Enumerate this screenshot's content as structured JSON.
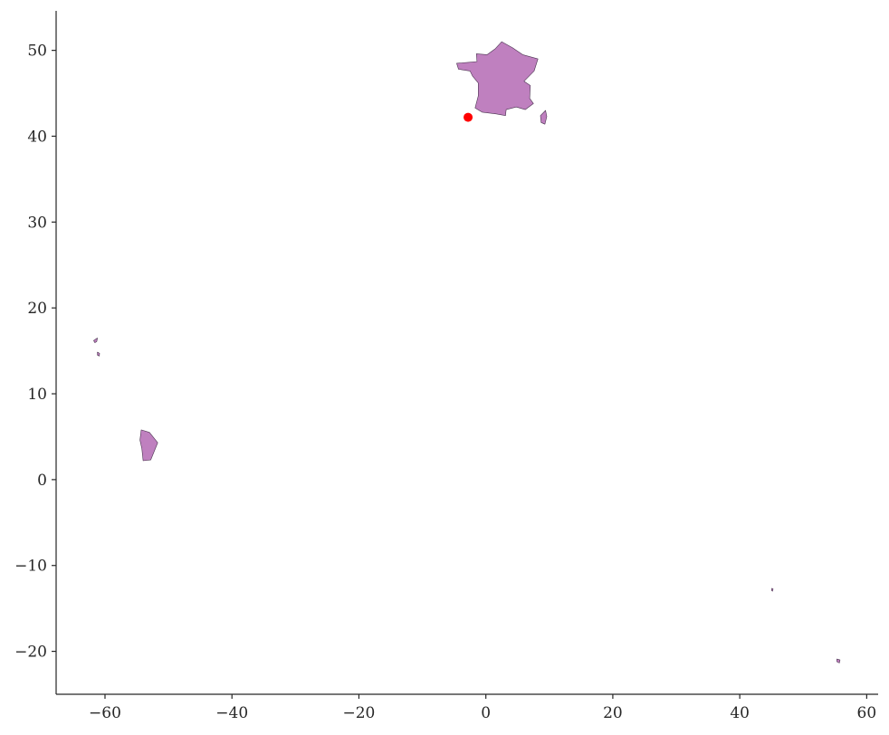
{
  "chart_data": {
    "type": "map",
    "title": "",
    "xlabel": "",
    "ylabel": "",
    "xlim": [
      -67.7,
      61.8
    ],
    "ylim": [
      -25.0,
      54.6
    ],
    "grid": false,
    "x_ticks": [
      -60,
      -40,
      -20,
      0,
      20,
      40,
      60
    ],
    "y_ticks": [
      -20,
      -10,
      0,
      10,
      20,
      30,
      40,
      50
    ],
    "x_tick_labels": [
      "−60",
      "−40",
      "−20",
      "0",
      "20",
      "40",
      "60"
    ],
    "y_tick_labels": [
      "−20",
      "−10",
      "0",
      "10",
      "20",
      "30",
      "40",
      "50"
    ],
    "fill_color": "#bf80bf",
    "edge_color": "#4a3350",
    "marker_color": "#ff0000",
    "regions": [
      {
        "name": "Metropolitan France",
        "lonlat": [
          [
            -4.6,
            48.5
          ],
          [
            -2.8,
            48.6
          ],
          [
            -1.4,
            48.7
          ],
          [
            -1.5,
            49.6
          ],
          [
            0.2,
            49.5
          ],
          [
            1.5,
            50.2
          ],
          [
            2.5,
            51.0
          ],
          [
            4.2,
            50.3
          ],
          [
            5.8,
            49.5
          ],
          [
            8.2,
            49.0
          ],
          [
            7.6,
            47.6
          ],
          [
            6.0,
            46.4
          ],
          [
            7.0,
            45.9
          ],
          [
            6.9,
            44.4
          ],
          [
            7.5,
            43.8
          ],
          [
            6.2,
            43.1
          ],
          [
            4.8,
            43.4
          ],
          [
            3.2,
            43.1
          ],
          [
            3.1,
            42.4
          ],
          [
            1.6,
            42.6
          ],
          [
            -0.6,
            42.8
          ],
          [
            -1.7,
            43.3
          ],
          [
            -1.2,
            44.7
          ],
          [
            -1.2,
            46.2
          ],
          [
            -2.1,
            47.0
          ],
          [
            -2.5,
            47.6
          ],
          [
            -4.3,
            47.8
          ]
        ]
      },
      {
        "name": "Corsica",
        "lonlat": [
          [
            9.4,
            43.0
          ],
          [
            9.6,
            42.3
          ],
          [
            9.3,
            41.4
          ],
          [
            8.7,
            41.6
          ],
          [
            8.6,
            42.4
          ]
        ]
      },
      {
        "name": "French Guiana",
        "lonlat": [
          [
            -54.3,
            5.8
          ],
          [
            -53.0,
            5.5
          ],
          [
            -51.7,
            4.3
          ],
          [
            -52.3,
            3.2
          ],
          [
            -52.8,
            2.3
          ],
          [
            -54.0,
            2.2
          ],
          [
            -54.2,
            3.6
          ],
          [
            -54.5,
            4.6
          ]
        ]
      },
      {
        "name": "Guadeloupe",
        "lonlat": [
          [
            -61.8,
            16.2
          ],
          [
            -61.2,
            16.5
          ],
          [
            -61.3,
            16.1
          ],
          [
            -61.6,
            15.95
          ]
        ]
      },
      {
        "name": "Martinique",
        "lonlat": [
          [
            -61.2,
            14.85
          ],
          [
            -60.85,
            14.7
          ],
          [
            -60.9,
            14.4
          ],
          [
            -61.2,
            14.5
          ]
        ]
      },
      {
        "name": "Mayotte",
        "lonlat": [
          [
            45.05,
            -12.65
          ],
          [
            45.25,
            -12.75
          ],
          [
            45.15,
            -13.0
          ],
          [
            45.0,
            -12.9
          ]
        ]
      },
      {
        "name": "Réunion",
        "lonlat": [
          [
            55.3,
            -20.9
          ],
          [
            55.8,
            -21.0
          ],
          [
            55.7,
            -21.35
          ],
          [
            55.3,
            -21.2
          ]
        ]
      }
    ],
    "points": [
      {
        "name": "marker",
        "x": -2.8,
        "y": 42.2
      }
    ]
  }
}
